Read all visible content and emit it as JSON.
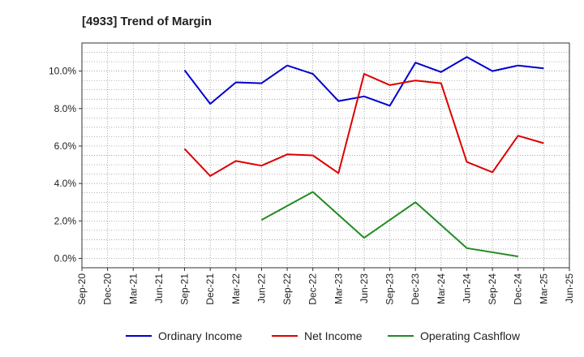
{
  "chart_data": {
    "type": "line",
    "title": "[4933]  Trend of Margin",
    "xlabel": "",
    "ylabel": "",
    "categories": [
      "Sep-20",
      "Dec-20",
      "Mar-21",
      "Jun-21",
      "Sep-21",
      "Dec-21",
      "Mar-22",
      "Jun-22",
      "Sep-22",
      "Dec-22",
      "Mar-23",
      "Jun-23",
      "Sep-23",
      "Dec-23",
      "Mar-24",
      "Jun-24",
      "Sep-24",
      "Dec-24",
      "Mar-25",
      "Jun-25"
    ],
    "ylim": [
      -0.5,
      11.5
    ],
    "yticks": [
      0,
      2,
      4,
      6,
      8,
      10
    ],
    "ytick_labels": [
      "0.0%",
      "2.0%",
      "4.0%",
      "6.0%",
      "8.0%",
      "10.0%"
    ],
    "grid": true,
    "legend_position": "bottom",
    "series": [
      {
        "name": "Ordinary Income",
        "color": "#0000cc",
        "values": [
          null,
          null,
          null,
          null,
          10.05,
          8.25,
          9.4,
          9.35,
          10.3,
          9.85,
          8.4,
          8.65,
          8.15,
          10.45,
          9.95,
          10.75,
          10.0,
          10.3,
          10.15,
          null
        ]
      },
      {
        "name": "Net Income",
        "color": "#dd0000",
        "values": [
          null,
          null,
          null,
          null,
          5.85,
          4.4,
          5.2,
          4.95,
          5.55,
          5.5,
          4.55,
          9.85,
          9.25,
          9.5,
          9.35,
          5.15,
          4.6,
          6.55,
          6.15,
          null
        ]
      },
      {
        "name": "Operating Cashflow",
        "color": "#228b22",
        "values": [
          null,
          null,
          null,
          null,
          null,
          null,
          null,
          2.05,
          null,
          3.55,
          null,
          1.1,
          null,
          3.0,
          null,
          0.55,
          null,
          0.1,
          null,
          null
        ]
      }
    ]
  }
}
